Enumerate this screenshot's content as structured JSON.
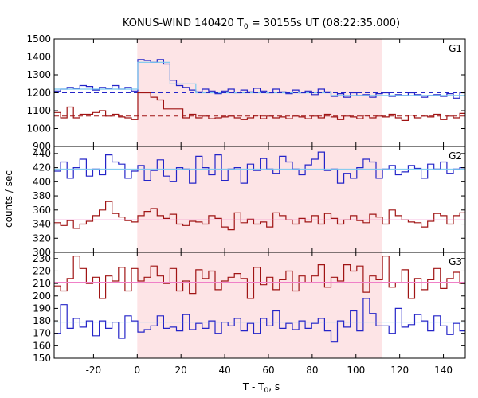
{
  "chart_data": {
    "type": "line",
    "title": {
      "prefix": "KONUS-WIND 140420 T",
      "sub": "0",
      "suffix": " = 30155s UT (08:22:35.000)"
    },
    "xlabel": {
      "prefix": "T - T",
      "sub": "0",
      "suffix": ", s"
    },
    "ylabel": "counts / sec",
    "xlim": [
      -38,
      150
    ],
    "xticks": [
      "-20",
      "0",
      "20",
      "40",
      "60",
      "80",
      "100",
      "120",
      "140"
    ],
    "highlight_interval": [
      0,
      112
    ],
    "bin_width": 2.944,
    "bin_start": -38,
    "colors": {
      "blue": "#2424c8",
      "red": "#a01414",
      "lightblue": "#78c8f0",
      "pink": "#f080c8",
      "shade": "#fde4e6"
    },
    "panels": [
      {
        "label": "G1",
        "ylim": [
          900,
          1500
        ],
        "yticks": [
          "900",
          "1000",
          "1100",
          "1200",
          "1300",
          "1400",
          "1500"
        ],
        "series": [
          {
            "color": "blue",
            "style": "step",
            "values": [
              1210,
              1220,
              1230,
              1225,
              1240,
              1235,
              1215,
              1230,
              1225,
              1240,
              1220,
              1230,
              1210,
              1385,
              1380,
              1370,
              1385,
              1360,
              1270,
              1240,
              1230,
              1215,
              1205,
              1220,
              1210,
              1195,
              1210,
              1220,
              1200,
              1215,
              1205,
              1225,
              1210,
              1200,
              1220,
              1205,
              1195,
              1215,
              1200,
              1210,
              1190,
              1220,
              1205,
              1180,
              1195,
              1175,
              1200,
              1185,
              1190,
              1175,
              1195,
              1200,
              1180,
              1190,
              1185,
              1200,
              1190,
              1175,
              1185,
              1190,
              1180,
              1195,
              1170,
              1200
            ]
          },
          {
            "color": "lightblue",
            "style": "step",
            "values": [
              1220,
              1220,
              1220,
              1220,
              1220,
              1220,
              1220,
              1220,
              1220,
              1220,
              1220,
              1220,
              1220,
              1370,
              1370,
              1370,
              1370,
              1370,
              1250,
              1250,
              1250,
              1250,
              1200,
              1200,
              1200,
              1200,
              1200,
              1200,
              1200,
              1200,
              1200,
              1200,
              1200,
              1200,
              1200,
              1200,
              1200,
              1200,
              1200,
              1200,
              1200,
              1200,
              1200,
              1185,
              1185,
              1185,
              1185,
              1185,
              1185,
              1185,
              1185,
              1185,
              1185,
              1185,
              1185,
              1185,
              1185,
              1185,
              1185,
              1185,
              1185,
              1185,
              1185,
              1185
            ]
          },
          {
            "color": "blue",
            "style": "dash",
            "values": [
              1200,
              1200
            ]
          },
          {
            "color": "red",
            "style": "step",
            "values": [
              1090,
              1060,
              1120,
              1060,
              1080,
              1080,
              1090,
              1100,
              1070,
              1080,
              1065,
              1060,
              1050,
              1200,
              1200,
              1175,
              1160,
              1110,
              1110,
              1110,
              1060,
              1080,
              1060,
              1070,
              1055,
              1060,
              1065,
              1070,
              1060,
              1050,
              1060,
              1075,
              1055,
              1070,
              1060,
              1065,
              1055,
              1070,
              1065,
              1055,
              1070,
              1060,
              1080,
              1065,
              1050,
              1070,
              1065,
              1055,
              1075,
              1060,
              1070,
              1065,
              1080,
              1060,
              1045,
              1075,
              1060,
              1070,
              1065,
              1080,
              1050,
              1070,
              1060,
              1085
            ]
          },
          {
            "color": "red",
            "style": "dash",
            "values": [
              1070,
              1070
            ]
          }
        ]
      },
      {
        "label": "G2",
        "ylim": [
          300,
          450
        ],
        "yticks": [
          "300",
          "320",
          "340",
          "360",
          "380",
          "400",
          "420",
          "440"
        ],
        "series": [
          {
            "color": "blue",
            "style": "step",
            "values": [
              415,
              428,
              405,
              420,
              432,
              408,
              418,
              410,
              438,
              428,
              425,
              405,
              415,
              423,
              402,
              416,
              431,
              408,
              400,
              420,
              418,
              398,
              436,
              420,
              410,
              438,
              402,
              418,
              420,
              398,
              425,
              416,
              433,
              418,
              412,
              436,
              428,
              418,
              410,
              424,
              432,
              442,
              416,
              418,
              398,
              412,
              405,
              420,
              432,
              428,
              405,
              418,
              423,
              410,
              414,
              423,
              419,
              405,
              425,
              418,
              428,
              412,
              418,
              420
            ]
          },
          {
            "color": "lightblue",
            "style": "flat",
            "values": [
              418,
              418
            ]
          },
          {
            "color": "red",
            "style": "step",
            "values": [
              342,
              338,
              345,
              334,
              340,
              344,
              352,
              360,
              372,
              355,
              350,
              345,
              343,
              352,
              358,
              362,
              352,
              348,
              354,
              340,
              338,
              344,
              343,
              340,
              352,
              348,
              336,
              332,
              356,
              342,
              347,
              340,
              343,
              336,
              356,
              352,
              346,
              340,
              348,
              343,
              352,
              340,
              355,
              348,
              340,
              346,
              352,
              345,
              342,
              354,
              350,
              340,
              360,
              352,
              346,
              343,
              342,
              336,
              344,
              355,
              352,
              340,
              352,
              356
            ]
          },
          {
            "color": "pink",
            "style": "flat",
            "values": [
              346,
              346
            ]
          }
        ]
      },
      {
        "label": "G3",
        "ylim": [
          150,
          235
        ],
        "yticks": [
          "150",
          "160",
          "170",
          "180",
          "190",
          "200",
          "210",
          "220",
          "230"
        ],
        "series": [
          {
            "color": "red",
            "style": "step",
            "values": [
              208,
              204,
              214,
              232,
              222,
              210,
              215,
              198,
              216,
              212,
              223,
              204,
              222,
              212,
              215,
              224,
              216,
              210,
              222,
              204,
              212,
              202,
              221,
              214,
              220,
              205,
              212,
              215,
              218,
              214,
              198,
              223,
              209,
              215,
              205,
              213,
              220,
              204,
              216,
              211,
              216,
              225,
              207,
              215,
              212,
              225,
              220,
              224,
              203,
              216,
              213,
              232,
              207,
              211,
              221,
              198,
              214,
              205,
              213,
              222,
              206,
              214,
              219,
              210
            ]
          },
          {
            "color": "pink",
            "style": "flat",
            "values": [
              211,
              211
            ]
          },
          {
            "color": "blue",
            "style": "step",
            "values": [
              170,
              193,
              174,
              182,
              175,
              180,
              168,
              180,
              174,
              179,
              166,
              184,
              180,
              171,
              173,
              176,
              184,
              174,
              175,
              172,
              185,
              173,
              178,
              174,
              180,
              170,
              179,
              176,
              182,
              172,
              178,
              170,
              182,
              176,
              188,
              174,
              178,
              173,
              180,
              174,
              178,
              182,
              172,
              163,
              180,
              175,
              188,
              172,
              198,
              186,
              176,
              176,
              170,
              190,
              175,
              177,
              185,
              180,
              172,
              184,
              176,
              169,
              178,
              172
            ]
          },
          {
            "color": "lightblue",
            "style": "flat",
            "values": [
              179,
              179
            ]
          }
        ]
      }
    ]
  }
}
